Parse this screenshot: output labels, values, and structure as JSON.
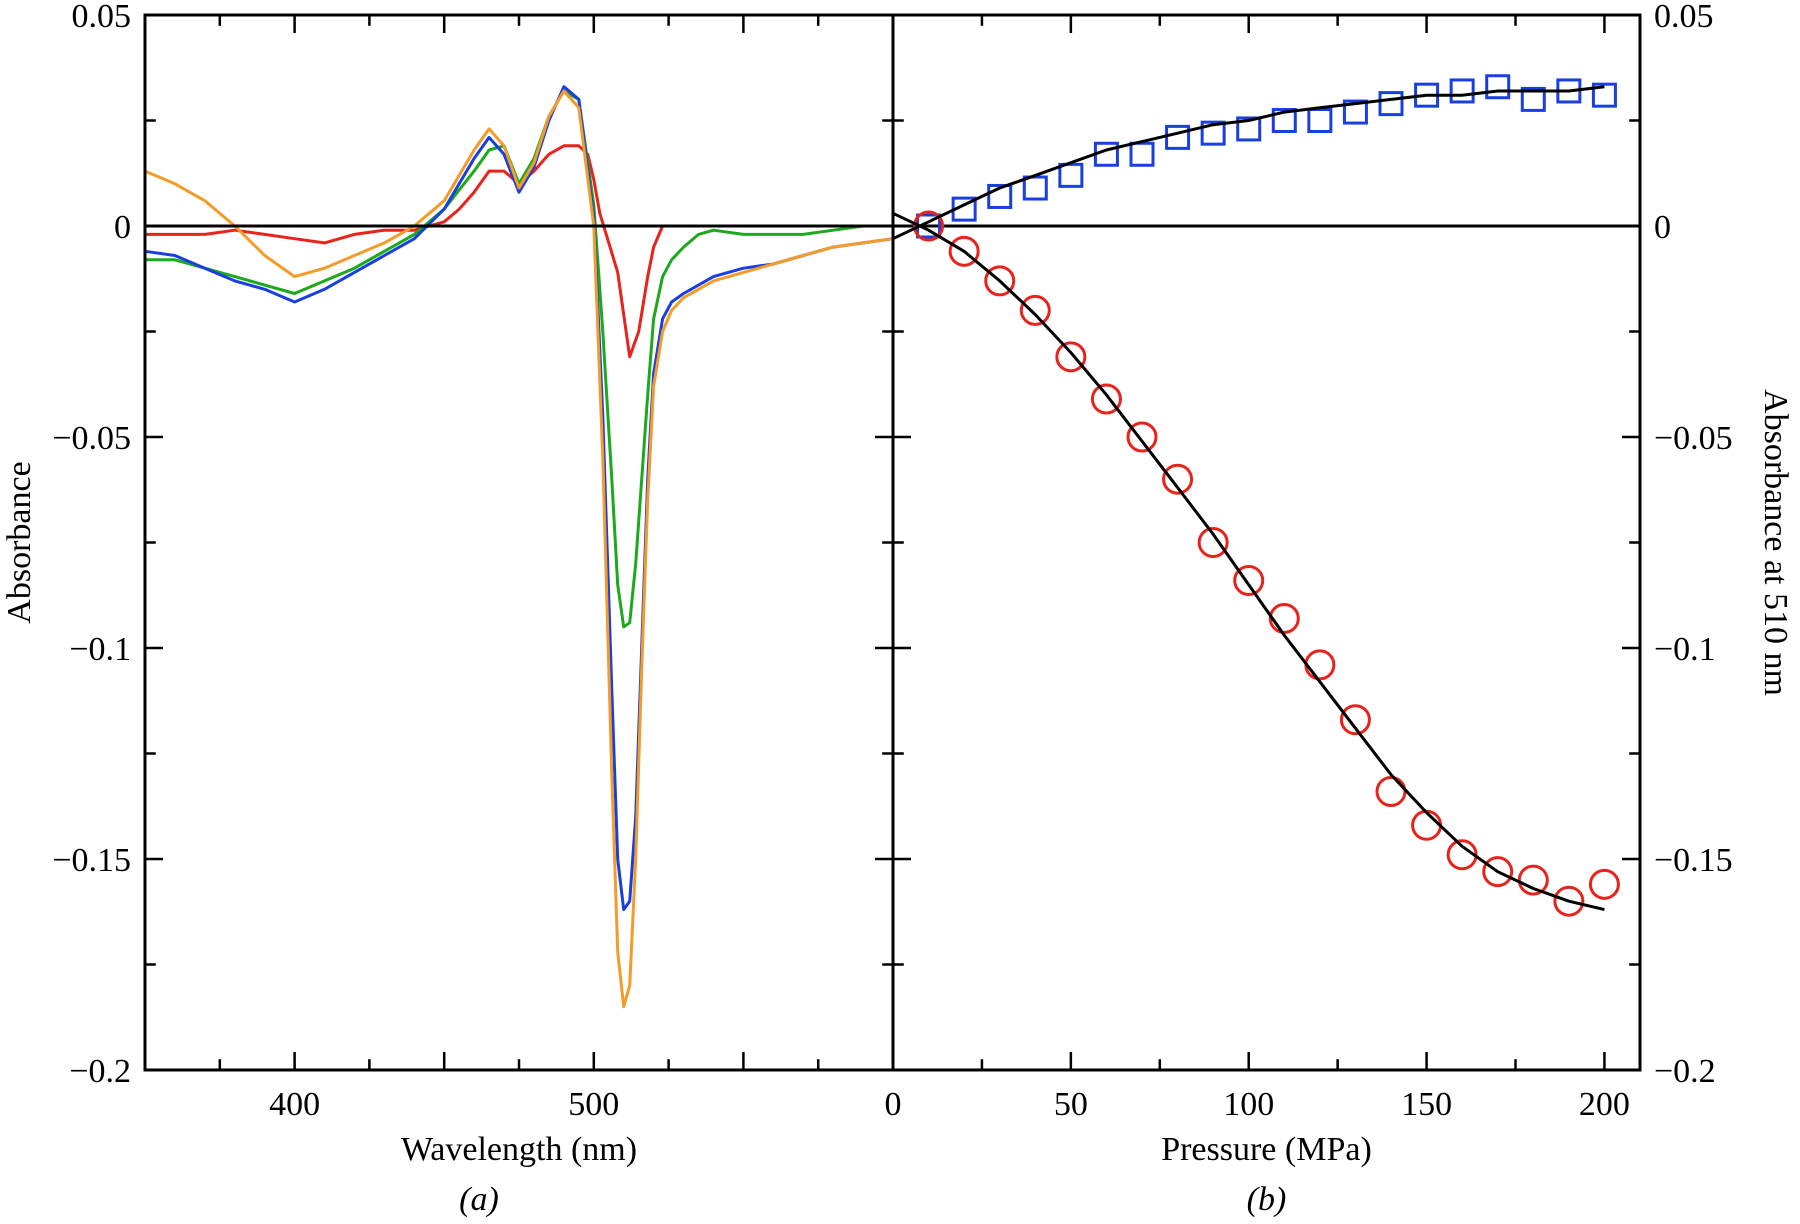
{
  "chart_data": [
    {
      "type": "line",
      "panel": "(a)",
      "xlabel": "Wavelength (nm)",
      "ylabel": "Absorbance",
      "xlim": [
        350,
        600
      ],
      "ylim": [
        -0.2,
        0.05
      ],
      "x_ticks": [
        400,
        500
      ],
      "y_ticks": [
        0.05,
        0,
        -0.05,
        -0.1,
        -0.15,
        -0.2
      ],
      "y_tick_labels": [
        "0.05",
        "0",
        "−0.05",
        "−0.1",
        "−0.15",
        "−0.2"
      ],
      "zero_line": true,
      "grid": false,
      "series": [
        {
          "color": "#e8231b",
          "x": [
            350,
            370,
            380,
            390,
            400,
            410,
            420,
            430,
            440,
            450,
            455,
            460,
            465,
            470,
            475,
            480,
            485,
            490,
            495,
            498,
            500,
            502,
            505,
            508,
            510,
            512,
            515,
            518,
            520,
            523,
            526,
            530,
            540,
            550,
            560,
            570,
            580,
            590,
            600
          ],
          "y": [
            -0.002,
            -0.002,
            -0.001,
            -0.002,
            -0.003,
            -0.004,
            -0.002,
            -0.001,
            -0.001,
            0.001,
            0.004,
            0.008,
            0.013,
            0.013,
            0.01,
            0.013,
            0.017,
            0.019,
            0.019,
            0.017,
            0.011,
            0.003,
            -0.004,
            -0.011,
            -0.021,
            -0.031,
            -0.025,
            -0.012,
            -0.005,
            0.0,
            0.0,
            0.0,
            0.0,
            0.0,
            0.0,
            0.0,
            0.0,
            0.0,
            0.0
          ]
        },
        {
          "color": "#1ca91c",
          "x": [
            350,
            360,
            370,
            380,
            390,
            400,
            410,
            420,
            430,
            440,
            450,
            460,
            465,
            470,
            475,
            480,
            485,
            490,
            495,
            500,
            503,
            506,
            508,
            510,
            512,
            514,
            516,
            518,
            520,
            523,
            526,
            530,
            535,
            540,
            550,
            560,
            570,
            580,
            590,
            600
          ],
          "y": [
            -0.008,
            -0.008,
            -0.01,
            -0.012,
            -0.014,
            -0.016,
            -0.013,
            -0.01,
            -0.006,
            -0.002,
            0.004,
            0.013,
            0.018,
            0.019,
            0.01,
            0.016,
            0.026,
            0.032,
            0.03,
            0.005,
            -0.025,
            -0.06,
            -0.085,
            -0.095,
            -0.094,
            -0.08,
            -0.06,
            -0.04,
            -0.022,
            -0.012,
            -0.008,
            -0.005,
            -0.002,
            -0.001,
            -0.002,
            -0.002,
            -0.002,
            -0.001,
            0.0,
            0.0
          ]
        },
        {
          "color": "#1a3fe0",
          "x": [
            350,
            360,
            370,
            380,
            390,
            400,
            410,
            420,
            430,
            440,
            450,
            460,
            465,
            470,
            475,
            480,
            485,
            490,
            495,
            500,
            503,
            506,
            508,
            510,
            512,
            514,
            516,
            518,
            520,
            523,
            526,
            530,
            535,
            540,
            550,
            560,
            570,
            580,
            590,
            600
          ],
          "y": [
            -0.006,
            -0.007,
            -0.01,
            -0.013,
            -0.015,
            -0.018,
            -0.015,
            -0.011,
            -0.007,
            -0.003,
            0.004,
            0.016,
            0.021,
            0.017,
            0.008,
            0.014,
            0.025,
            0.033,
            0.03,
            0.002,
            -0.045,
            -0.11,
            -0.15,
            -0.162,
            -0.16,
            -0.14,
            -0.1,
            -0.06,
            -0.035,
            -0.022,
            -0.018,
            -0.016,
            -0.014,
            -0.012,
            -0.01,
            -0.009,
            -0.007,
            -0.005,
            -0.004,
            -0.003
          ]
        },
        {
          "color": "#f39c2a",
          "x": [
            350,
            360,
            370,
            380,
            390,
            400,
            410,
            420,
            430,
            440,
            450,
            460,
            465,
            470,
            475,
            480,
            485,
            490,
            495,
            500,
            503,
            506,
            508,
            510,
            512,
            514,
            516,
            518,
            520,
            523,
            526,
            530,
            535,
            540,
            550,
            560,
            570,
            580,
            590,
            600
          ],
          "y": [
            0.013,
            0.01,
            0.006,
            0.0,
            -0.007,
            -0.012,
            -0.01,
            -0.007,
            -0.004,
            0.0,
            0.006,
            0.018,
            0.023,
            0.019,
            0.009,
            0.015,
            0.026,
            0.032,
            0.028,
            0.0,
            -0.055,
            -0.13,
            -0.172,
            -0.185,
            -0.18,
            -0.15,
            -0.105,
            -0.065,
            -0.038,
            -0.025,
            -0.02,
            -0.017,
            -0.015,
            -0.013,
            -0.011,
            -0.009,
            -0.007,
            -0.005,
            -0.004,
            -0.003
          ]
        }
      ]
    },
    {
      "type": "scatter",
      "panel": "(b)",
      "xlabel": "Pressure (MPa)",
      "ylabel": "Absorbance at 510 nm",
      "xlim": [
        0,
        210
      ],
      "ylim": [
        -0.2,
        0.05
      ],
      "x_ticks": [
        0,
        50,
        100,
        150,
        200
      ],
      "y_ticks": [
        0.05,
        0,
        -0.05,
        -0.1,
        -0.15,
        -0.2
      ],
      "y_tick_labels": [
        "0.05",
        "0",
        "−0.05",
        "−0.1",
        "−0.15",
        "−0.2"
      ],
      "zero_line": true,
      "grid": false,
      "series": [
        {
          "marker": "square",
          "color": "#1a3fe0",
          "x": [
            10,
            20,
            30,
            40,
            50,
            60,
            70,
            80,
            90,
            100,
            110,
            120,
            130,
            140,
            150,
            160,
            170,
            180,
            190,
            200
          ],
          "y": [
            0.0,
            0.004,
            0.007,
            0.009,
            0.012,
            0.017,
            0.017,
            0.021,
            0.022,
            0.023,
            0.025,
            0.025,
            0.027,
            0.029,
            0.031,
            0.032,
            0.033,
            0.03,
            0.032,
            0.031
          ]
        },
        {
          "marker": "circle",
          "color": "#e8231b",
          "x": [
            10,
            20,
            30,
            40,
            50,
            60,
            70,
            80,
            90,
            100,
            110,
            120,
            130,
            140,
            150,
            160,
            170,
            180,
            190,
            200
          ],
          "y": [
            0.0,
            -0.006,
            -0.013,
            -0.02,
            -0.031,
            -0.041,
            -0.05,
            -0.06,
            -0.075,
            -0.084,
            -0.093,
            -0.104,
            -0.117,
            -0.134,
            -0.142,
            -0.149,
            -0.153,
            -0.155,
            -0.16,
            -0.156
          ]
        },
        {
          "type": "line",
          "color": "#000000",
          "x": [
            0,
            10,
            20,
            30,
            40,
            50,
            60,
            70,
            80,
            90,
            100,
            110,
            120,
            130,
            140,
            150,
            160,
            170,
            180,
            190,
            200
          ],
          "y": [
            -0.003,
            0.001,
            0.005,
            0.009,
            0.012,
            0.015,
            0.018,
            0.02,
            0.022,
            0.024,
            0.025,
            0.027,
            0.028,
            0.029,
            0.03,
            0.031,
            0.031,
            0.032,
            0.032,
            0.032,
            0.033
          ]
        },
        {
          "type": "line",
          "color": "#000000",
          "x": [
            0,
            10,
            20,
            30,
            40,
            50,
            60,
            70,
            80,
            90,
            100,
            110,
            120,
            130,
            140,
            150,
            160,
            170,
            180,
            190,
            200
          ],
          "y": [
            0.003,
            -0.001,
            -0.006,
            -0.013,
            -0.021,
            -0.03,
            -0.04,
            -0.051,
            -0.062,
            -0.073,
            -0.085,
            -0.097,
            -0.108,
            -0.119,
            -0.13,
            -0.139,
            -0.147,
            -0.153,
            -0.157,
            -0.16,
            -0.162
          ]
        }
      ]
    }
  ]
}
